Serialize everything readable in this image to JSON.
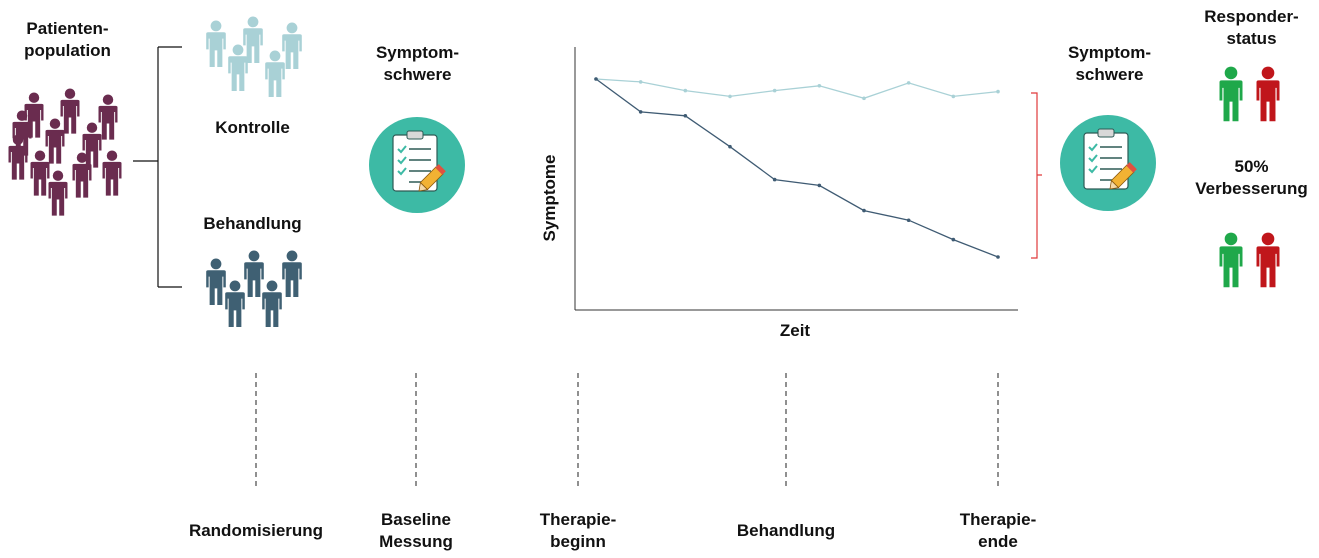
{
  "colors": {
    "population": "#6a2c4f",
    "control": "#a9d1d6",
    "treatment": "#3f6073",
    "icon_bg": "#3dbaa5",
    "responder_green": "#1fa84a",
    "responder_red": "#c0161b",
    "bracket_red": "#e0393b",
    "series_control": "#a9d1d6",
    "series_treatment": "#3f5b73"
  },
  "labels": {
    "population": [
      "Patienten-",
      "population"
    ],
    "control": "Kontrolle",
    "treatment": "Behandlung",
    "symptom_left": [
      "Symptom-",
      "schwere"
    ],
    "symptom_right": [
      "Symptom-",
      "schwere"
    ],
    "responder": [
      "Responder-",
      "status"
    ],
    "improvement": [
      "50%",
      "Verbesserung"
    ]
  },
  "timeline": [
    [
      "Randomisierung"
    ],
    [
      "Baseline",
      "Messung"
    ],
    [
      "Therapie-",
      "beginn"
    ],
    [
      "Behandlung"
    ],
    [
      "Therapie-",
      "ende"
    ]
  ],
  "icons": {
    "population": "people-group-icon",
    "control": "people-group-icon",
    "treatment": "people-group-icon",
    "assessment": "clipboard-checklist-icon",
    "responder": "person-icon"
  },
  "chart_data": {
    "type": "line",
    "xlabel": "Zeit",
    "ylabel": "Symptome",
    "x": [
      0,
      1,
      2,
      3,
      4,
      5,
      6,
      7,
      8,
      9
    ],
    "series": [
      {
        "values": [
          10.0,
          9.85,
          9.4,
          9.1,
          9.4,
          9.65,
          9.0,
          9.8,
          9.1,
          9.35
        ],
        "color": "#a9d1d6"
      },
      {
        "values": [
          10.0,
          8.3,
          8.1,
          6.5,
          4.8,
          4.5,
          3.2,
          2.7,
          1.7,
          0.8
        ],
        "color": "#3f5b73"
      }
    ],
    "ylim": [
      0,
      11
    ],
    "grid": false
  }
}
